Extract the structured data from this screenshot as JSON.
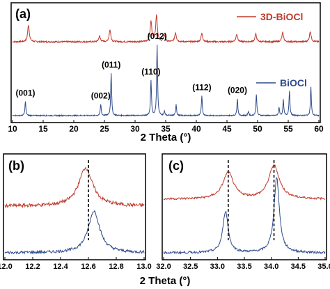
{
  "figure": {
    "shared_xlabel": "2 Theta (°)"
  },
  "chart_data": [
    {
      "panel": "(a)",
      "type": "line",
      "xlabel": "2 Theta (°)",
      "ylabel": "",
      "xlim": [
        10,
        60
      ],
      "xticks": [
        "10",
        "15",
        "20",
        "25",
        "30",
        "35",
        "40",
        "45",
        "50",
        "55",
        "60"
      ],
      "legend_placement": "top-right",
      "series": [
        {
          "name": "3D-BiOCl",
          "color": "#c0392b",
          "peaks": [
            {
              "x": 12.6,
              "h": 0.24
            },
            {
              "x": 24.2,
              "h": 0.08
            },
            {
              "x": 25.9,
              "h": 0.17
            },
            {
              "x": 32.6,
              "h": 0.29
            },
            {
              "x": 33.5,
              "h": 0.38
            },
            {
              "x": 34.8,
              "h": 0.09
            },
            {
              "x": 36.6,
              "h": 0.13
            },
            {
              "x": 40.9,
              "h": 0.12
            },
            {
              "x": 46.6,
              "h": 0.11
            },
            {
              "x": 49.7,
              "h": 0.11
            },
            {
              "x": 54.1,
              "h": 0.13
            },
            {
              "x": 58.6,
              "h": 0.15
            }
          ]
        },
        {
          "name": "BiOCl",
          "color": "#2e4a8c",
          "peaks": [
            {
              "x": 12.1,
              "h": 0.2,
              "label": "(001)"
            },
            {
              "x": 24.4,
              "h": 0.16,
              "label": "(002)"
            },
            {
              "x": 26.1,
              "h": 0.6,
              "label": "(011)"
            },
            {
              "x": 32.6,
              "h": 0.5,
              "label": "(110)"
            },
            {
              "x": 33.6,
              "h": 1.0,
              "label": "(012)"
            },
            {
              "x": 34.8,
              "h": 0.06
            },
            {
              "x": 36.7,
              "h": 0.16
            },
            {
              "x": 40.9,
              "h": 0.28,
              "label": "(112)"
            },
            {
              "x": 46.7,
              "h": 0.24,
              "label": "(020)"
            },
            {
              "x": 48.5,
              "h": 0.06
            },
            {
              "x": 49.8,
              "h": 0.3
            },
            {
              "x": 53.5,
              "h": 0.12
            },
            {
              "x": 54.2,
              "h": 0.22
            },
            {
              "x": 55.2,
              "h": 0.35
            },
            {
              "x": 58.7,
              "h": 0.4
            }
          ]
        }
      ]
    },
    {
      "panel": "(b)",
      "type": "line",
      "xlabel": "",
      "ylabel": "",
      "xlim": [
        12.0,
        13.0
      ],
      "xticks": [
        "12.0",
        "12.2",
        "12.4",
        "12.6",
        "12.8",
        "13.0"
      ],
      "reference_lines": [
        12.6
      ],
      "series": [
        {
          "name": "",
          "color": "#c0392b",
          "peaks": [
            {
              "x": 12.58,
              "h": 0.55
            }
          ]
        },
        {
          "name": "",
          "color": "#2e4a8c",
          "peaks": [
            {
              "x": 12.64,
              "h": 0.6
            }
          ]
        }
      ]
    },
    {
      "panel": "(c)",
      "type": "line",
      "xlabel": "",
      "ylabel": "",
      "xlim": [
        32.0,
        35.0
      ],
      "xticks": [
        "32.0",
        "32.5",
        "33.0",
        "33.5",
        "34.0",
        "34.5",
        "35.0"
      ],
      "reference_lines": [
        33.2,
        34.05
      ],
      "series": [
        {
          "name": "",
          "color": "#c0392b",
          "peaks": [
            {
              "x": 33.2,
              "h": 0.38
            },
            {
              "x": 34.05,
              "h": 0.48
            }
          ]
        },
        {
          "name": "",
          "color": "#2e4a8c",
          "peaks": [
            {
              "x": 33.15,
              "h": 0.55
            },
            {
              "x": 34.1,
              "h": 1.0
            }
          ]
        }
      ]
    }
  ]
}
